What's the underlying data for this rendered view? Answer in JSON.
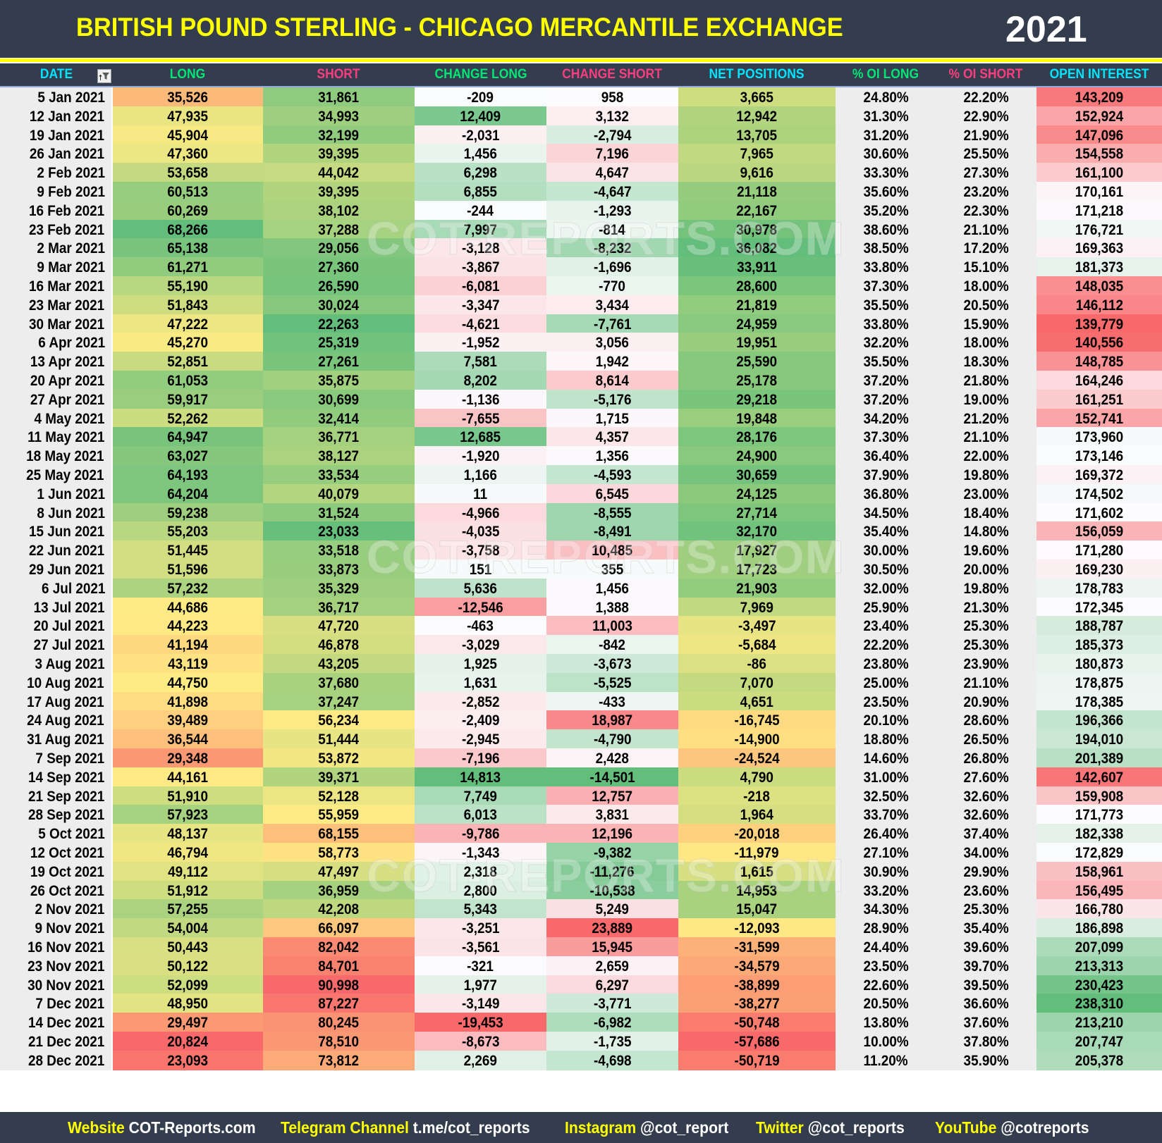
{
  "header": {
    "title": "BRITISH POUND STERLING - CHICAGO MERCANTILE EXCHANGE",
    "year": "2021"
  },
  "columns": [
    {
      "key": "date",
      "label": "DATE",
      "color": "#00e5ff"
    },
    {
      "key": "long",
      "label": "LONG",
      "color": "#00e676"
    },
    {
      "key": "short",
      "label": "SHORT",
      "color": "#ff3d7f"
    },
    {
      "key": "change_long",
      "label": "CHANGE LONG",
      "color": "#00e676"
    },
    {
      "key": "change_short",
      "label": "CHANGE SHORT",
      "color": "#ff3d7f"
    },
    {
      "key": "net",
      "label": "NET POSITIONS",
      "color": "#00e5ff"
    },
    {
      "key": "pct_long",
      "label": "% OI LONG",
      "color": "#00e676"
    },
    {
      "key": "pct_short",
      "label": "% OI SHORT",
      "color": "#ff3d7f"
    },
    {
      "key": "oi",
      "label": "OPEN INTEREST",
      "color": "#00e5ff"
    }
  ],
  "filter_icon": "filter-sort-icon",
  "watermark": "COT-REPORTS.COM",
  "footer": [
    {
      "label": "Website",
      "value": "COT-Reports.com"
    },
    {
      "label": "Telegram Channel",
      "value": "t.me/cot_reports"
    },
    {
      "label": "Instagram",
      "value": "@cot_report"
    },
    {
      "label": "Twitter",
      "value": "@cot_reports"
    },
    {
      "label": "YouTube",
      "value": "@cotreports"
    }
  ],
  "colors": {
    "background_dark": "#333d4d",
    "accent_yellow": "#ffff00",
    "scale_red": "#f8696b",
    "scale_yellow": "#ffeb84",
    "scale_green": "#63be7b",
    "scale_white": "#fcfcff"
  },
  "chart_data": {
    "type": "table",
    "title": "BRITISH POUND STERLING - CHICAGO MERCANTILE EXCHANGE 2021",
    "columns": [
      "DATE",
      "LONG",
      "SHORT",
      "CHANGE LONG",
      "CHANGE SHORT",
      "NET POSITIONS",
      "% OI LONG",
      "% OI SHORT",
      "OPEN INTEREST"
    ],
    "rows": [
      [
        "5 Jan 2021",
        "35,526",
        "31,861",
        "-209",
        "958",
        "3,665",
        "24.80%",
        "22.20%",
        "143,209"
      ],
      [
        "12 Jan 2021",
        "47,935",
        "34,993",
        "12,409",
        "3,132",
        "12,942",
        "31.30%",
        "22.90%",
        "152,924"
      ],
      [
        "19 Jan 2021",
        "45,904",
        "32,199",
        "-2,031",
        "-2,794",
        "13,705",
        "31.20%",
        "21.90%",
        "147,096"
      ],
      [
        "26 Jan 2021",
        "47,360",
        "39,395",
        "1,456",
        "7,196",
        "7,965",
        "30.60%",
        "25.50%",
        "154,558"
      ],
      [
        "2 Feb 2021",
        "53,658",
        "44,042",
        "6,298",
        "4,647",
        "9,616",
        "33.30%",
        "27.30%",
        "161,100"
      ],
      [
        "9 Feb 2021",
        "60,513",
        "39,395",
        "6,855",
        "-4,647",
        "21,118",
        "35.60%",
        "23.20%",
        "170,161"
      ],
      [
        "16 Feb 2021",
        "60,269",
        "38,102",
        "-244",
        "-1,293",
        "22,167",
        "35.20%",
        "22.30%",
        "171,218"
      ],
      [
        "23 Feb 2021",
        "68,266",
        "37,288",
        "7,997",
        "-814",
        "30,978",
        "38.60%",
        "21.10%",
        "176,721"
      ],
      [
        "2 Mar 2021",
        "65,138",
        "29,056",
        "-3,128",
        "-8,232",
        "36,082",
        "38.50%",
        "17.20%",
        "169,363"
      ],
      [
        "9 Mar 2021",
        "61,271",
        "27,360",
        "-3,867",
        "-1,696",
        "33,911",
        "33.80%",
        "15.10%",
        "181,373"
      ],
      [
        "16 Mar 2021",
        "55,190",
        "26,590",
        "-6,081",
        "-770",
        "28,600",
        "37.30%",
        "18.00%",
        "148,035"
      ],
      [
        "23 Mar 2021",
        "51,843",
        "30,024",
        "-3,347",
        "3,434",
        "21,819",
        "35.50%",
        "20.50%",
        "146,112"
      ],
      [
        "30 Mar 2021",
        "47,222",
        "22,263",
        "-4,621",
        "-7,761",
        "24,959",
        "33.80%",
        "15.90%",
        "139,779"
      ],
      [
        "6 Apr 2021",
        "45,270",
        "25,319",
        "-1,952",
        "3,056",
        "19,951",
        "32.20%",
        "18.00%",
        "140,556"
      ],
      [
        "13 Apr 2021",
        "52,851",
        "27,261",
        "7,581",
        "1,942",
        "25,590",
        "35.50%",
        "18.30%",
        "148,785"
      ],
      [
        "20 Apr 2021",
        "61,053",
        "35,875",
        "8,202",
        "8,614",
        "25,178",
        "37.20%",
        "21.80%",
        "164,246"
      ],
      [
        "27 Apr 2021",
        "59,917",
        "30,699",
        "-1,136",
        "-5,176",
        "29,218",
        "37.20%",
        "19.00%",
        "161,251"
      ],
      [
        "4 May 2021",
        "52,262",
        "32,414",
        "-7,655",
        "1,715",
        "19,848",
        "34.20%",
        "21.20%",
        "152,741"
      ],
      [
        "11 May 2021",
        "64,947",
        "36,771",
        "12,685",
        "4,357",
        "28,176",
        "37.30%",
        "21.10%",
        "173,960"
      ],
      [
        "18 May 2021",
        "63,027",
        "38,127",
        "-1,920",
        "1,356",
        "24,900",
        "36.40%",
        "22.00%",
        "173,146"
      ],
      [
        "25 May 2021",
        "64,193",
        "33,534",
        "1,166",
        "-4,593",
        "30,659",
        "37.90%",
        "19.80%",
        "169,372"
      ],
      [
        "1 Jun 2021",
        "64,204",
        "40,079",
        "11",
        "6,545",
        "24,125",
        "36.80%",
        "23.00%",
        "174,502"
      ],
      [
        "8 Jun 2021",
        "59,238",
        "31,524",
        "-4,966",
        "-8,555",
        "27,714",
        "34.50%",
        "18.40%",
        "171,602"
      ],
      [
        "15 Jun 2021",
        "55,203",
        "23,033",
        "-4,035",
        "-8,491",
        "32,170",
        "35.40%",
        "14.80%",
        "156,059"
      ],
      [
        "22 Jun 2021",
        "51,445",
        "33,518",
        "-3,758",
        "10,485",
        "17,927",
        "30.00%",
        "19.60%",
        "171,280"
      ],
      [
        "29 Jun 2021",
        "51,596",
        "33,873",
        "151",
        "355",
        "17,723",
        "30.50%",
        "20.00%",
        "169,230"
      ],
      [
        "6 Jul 2021",
        "57,232",
        "35,329",
        "5,636",
        "1,456",
        "21,903",
        "32.00%",
        "19.80%",
        "178,783"
      ],
      [
        "13 Jul 2021",
        "44,686",
        "36,717",
        "-12,546",
        "1,388",
        "7,969",
        "25.90%",
        "21.30%",
        "172,345"
      ],
      [
        "20 Jul 2021",
        "44,223",
        "47,720",
        "-463",
        "11,003",
        "-3,497",
        "23.40%",
        "25.30%",
        "188,787"
      ],
      [
        "27 Jul 2021",
        "41,194",
        "46,878",
        "-3,029",
        "-842",
        "-5,684",
        "22.20%",
        "25.30%",
        "185,373"
      ],
      [
        "3 Aug 2021",
        "43,119",
        "43,205",
        "1,925",
        "-3,673",
        "-86",
        "23.80%",
        "23.90%",
        "180,873"
      ],
      [
        "10 Aug 2021",
        "44,750",
        "37,680",
        "1,631",
        "-5,525",
        "7,070",
        "25.00%",
        "21.10%",
        "178,875"
      ],
      [
        "17 Aug 2021",
        "41,898",
        "37,247",
        "-2,852",
        "-433",
        "4,651",
        "23.50%",
        "20.90%",
        "178,385"
      ],
      [
        "24 Aug 2021",
        "39,489",
        "56,234",
        "-2,409",
        "18,987",
        "-16,745",
        "20.10%",
        "28.60%",
        "196,366"
      ],
      [
        "31 Aug 2021",
        "36,544",
        "51,444",
        "-2,945",
        "-4,790",
        "-14,900",
        "18.80%",
        "26.50%",
        "194,010"
      ],
      [
        "7 Sep 2021",
        "29,348",
        "53,872",
        "-7,196",
        "2,428",
        "-24,524",
        "14.60%",
        "26.80%",
        "201,389"
      ],
      [
        "14 Sep 2021",
        "44,161",
        "39,371",
        "14,813",
        "-14,501",
        "4,790",
        "31.00%",
        "27.60%",
        "142,607"
      ],
      [
        "21 Sep 2021",
        "51,910",
        "52,128",
        "7,749",
        "12,757",
        "-218",
        "32.50%",
        "32.60%",
        "159,908"
      ],
      [
        "28 Sep 2021",
        "57,923",
        "55,959",
        "6,013",
        "3,831",
        "1,964",
        "33.70%",
        "32.60%",
        "171,773"
      ],
      [
        "5 Oct 2021",
        "48,137",
        "68,155",
        "-9,786",
        "12,196",
        "-20,018",
        "26.40%",
        "37.40%",
        "182,338"
      ],
      [
        "12 Oct 2021",
        "46,794",
        "58,773",
        "-1,343",
        "-9,382",
        "-11,979",
        "27.10%",
        "34.00%",
        "172,829"
      ],
      [
        "19 Oct 2021",
        "49,112",
        "47,497",
        "2,318",
        "-11,276",
        "1,615",
        "30.90%",
        "29.90%",
        "158,961"
      ],
      [
        "26 Oct 2021",
        "51,912",
        "36,959",
        "2,800",
        "-10,538",
        "14,953",
        "33.20%",
        "23.60%",
        "156,495"
      ],
      [
        "2 Nov 2021",
        "57,255",
        "42,208",
        "5,343",
        "5,249",
        "15,047",
        "34.30%",
        "25.30%",
        "166,780"
      ],
      [
        "9 Nov 2021",
        "54,004",
        "66,097",
        "-3,251",
        "23,889",
        "-12,093",
        "28.90%",
        "35.40%",
        "186,898"
      ],
      [
        "16 Nov 2021",
        "50,443",
        "82,042",
        "-3,561",
        "15,945",
        "-31,599",
        "24.40%",
        "39.60%",
        "207,099"
      ],
      [
        "23 Nov 2021",
        "50,122",
        "84,701",
        "-321",
        "2,659",
        "-34,579",
        "23.50%",
        "39.70%",
        "213,313"
      ],
      [
        "30 Nov 2021",
        "52,099",
        "90,998",
        "1,977",
        "6,297",
        "-38,899",
        "22.60%",
        "39.50%",
        "230,423"
      ],
      [
        "7 Dec 2021",
        "48,950",
        "87,227",
        "-3,149",
        "-3,771",
        "-38,277",
        "20.50%",
        "36.60%",
        "238,310"
      ],
      [
        "14 Dec 2021",
        "29,497",
        "80,245",
        "-19,453",
        "-6,982",
        "-50,748",
        "13.80%",
        "37.60%",
        "213,210"
      ],
      [
        "21 Dec 2021",
        "20,824",
        "78,510",
        "-8,673",
        "-1,735",
        "-57,686",
        "10.00%",
        "37.80%",
        "207,747"
      ],
      [
        "28 Dec 2021",
        "23,093",
        "73,812",
        "2,269",
        "-4,698",
        "-50,719",
        "11.20%",
        "35.90%",
        "205,378"
      ]
    ]
  }
}
